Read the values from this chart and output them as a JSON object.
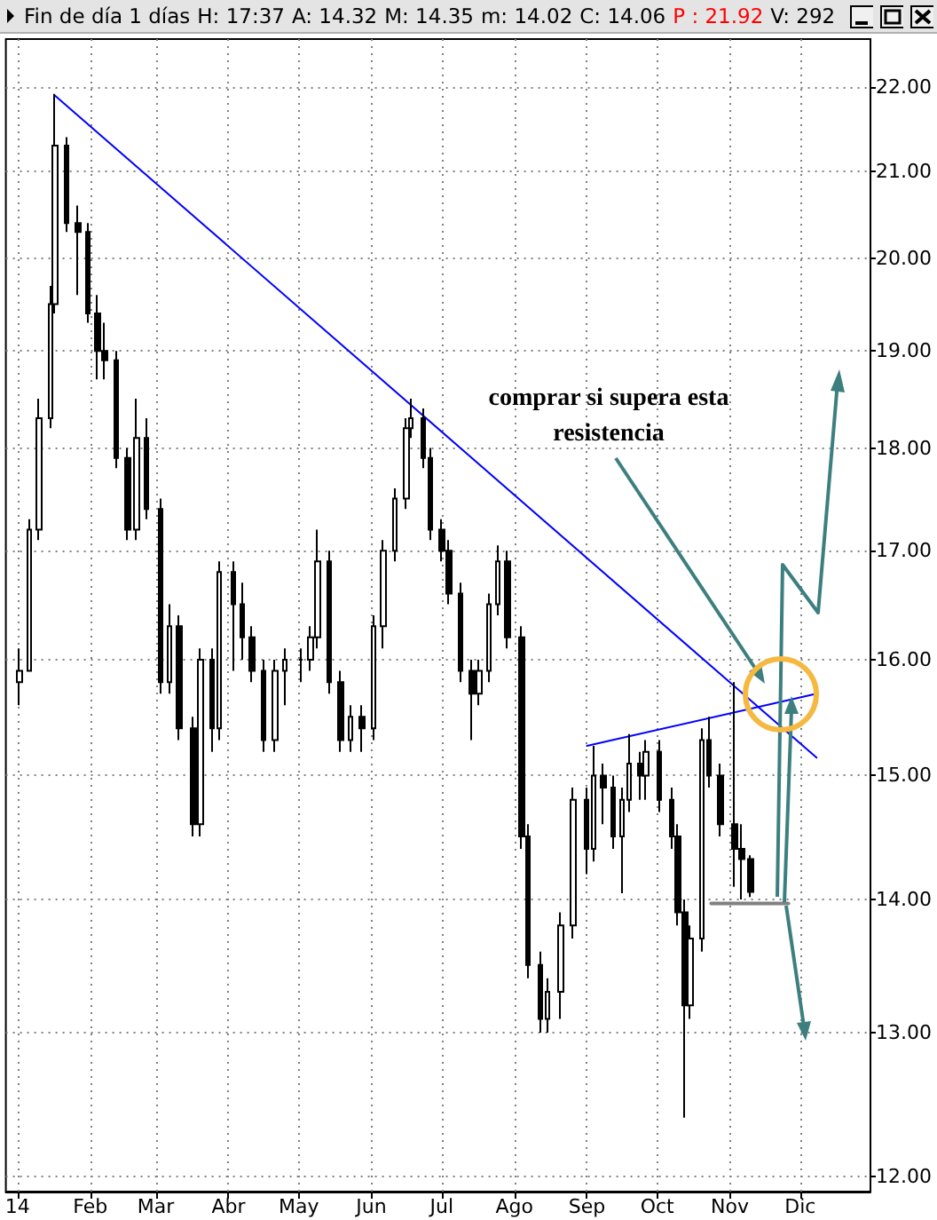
{
  "chart_data": {
    "type": "candlestick",
    "annotations": [
      "Fin de día 1 días",
      "H: 17:37",
      "A: 14.32",
      "M: 14.35",
      "m: 14.02",
      "C: 14.06",
      "P : 21.92",
      "V: 292",
      "comprar si supera esta resistencia"
    ],
    "x": [
      "2014-01-02",
      "2014-01-06",
      "2014-01-10",
      "2014-01-15",
      "2014-01-17",
      "2014-01-22",
      "2014-01-27",
      "2014-01-31",
      "2014-02-04",
      "2014-02-07",
      "2014-02-12",
      "2014-02-17",
      "2014-02-21",
      "2014-02-25",
      "2014-03-03",
      "2014-03-07",
      "2014-03-11",
      "2014-03-17",
      "2014-03-20",
      "2014-03-25",
      "2014-03-28",
      "2014-04-03",
      "2014-04-07",
      "2014-04-11",
      "2014-04-16",
      "2014-04-21",
      "2014-04-25",
      "2014-05-02",
      "2014-05-06",
      "2014-05-09",
      "2014-05-14",
      "2014-05-19",
      "2014-05-23",
      "2014-05-28",
      "2014-06-02",
      "2014-06-06",
      "2014-06-11",
      "2014-06-16",
      "2014-06-18",
      "2014-06-23",
      "2014-06-26",
      "2014-07-01",
      "2014-07-04",
      "2014-07-09",
      "2014-07-14",
      "2014-07-17",
      "2014-07-21",
      "2014-07-25",
      "2014-07-29",
      "2014-08-04",
      "2014-08-07",
      "2014-08-12",
      "2014-08-15",
      "2014-08-21",
      "2014-08-26",
      "2014-09-01",
      "2014-09-04",
      "2014-09-08",
      "2014-09-12",
      "2014-09-16",
      "2014-09-19",
      "2014-09-24",
      "2014-09-26",
      "2014-10-02",
      "2014-10-07",
      "2014-10-10",
      "2014-10-13",
      "2014-10-15",
      "2014-10-20",
      "2014-10-23",
      "2014-10-28",
      "2014-11-03",
      "2014-11-06",
      "2014-11-10"
    ],
    "ohlc": [
      [
        15.8,
        16.1,
        15.6,
        15.9
      ],
      [
        15.9,
        17.3,
        15.9,
        17.2
      ],
      [
        17.2,
        18.5,
        17.1,
        18.3
      ],
      [
        18.3,
        19.7,
        18.2,
        19.5
      ],
      [
        19.5,
        21.92,
        19.4,
        21.3
      ],
      [
        21.3,
        21.4,
        20.3,
        20.4
      ],
      [
        20.4,
        20.6,
        19.6,
        20.3
      ],
      [
        20.3,
        20.4,
        19.3,
        19.4
      ],
      [
        19.4,
        19.6,
        18.7,
        19.0
      ],
      [
        19.0,
        19.3,
        18.7,
        18.9
      ],
      [
        18.9,
        19.0,
        17.8,
        17.9
      ],
      [
        17.9,
        18.0,
        17.1,
        17.2
      ],
      [
        17.2,
        18.5,
        17.1,
        18.1
      ],
      [
        18.1,
        18.3,
        17.3,
        17.4
      ],
      [
        17.4,
        17.5,
        15.7,
        15.8
      ],
      [
        15.8,
        16.5,
        15.7,
        16.3
      ],
      [
        16.3,
        16.4,
        15.3,
        15.4
      ],
      [
        15.4,
        15.5,
        14.5,
        14.6
      ],
      [
        14.6,
        16.1,
        14.5,
        16.0
      ],
      [
        16.0,
        16.1,
        15.2,
        15.4
      ],
      [
        15.4,
        16.9,
        15.3,
        16.8
      ],
      [
        16.8,
        16.9,
        15.9,
        16.5
      ],
      [
        16.5,
        16.7,
        16.0,
        16.2
      ],
      [
        16.2,
        16.3,
        15.8,
        15.9
      ],
      [
        15.9,
        16.0,
        15.2,
        15.3
      ],
      [
        15.3,
        16.0,
        15.2,
        15.9
      ],
      [
        15.9,
        16.1,
        15.6,
        16.0
      ],
      [
        16.0,
        16.1,
        15.8,
        16.0
      ],
      [
        16.0,
        16.3,
        15.9,
        16.2
      ],
      [
        16.2,
        17.2,
        16.1,
        16.9
      ],
      [
        16.9,
        17.0,
        15.7,
        15.8
      ],
      [
        15.8,
        15.9,
        15.2,
        15.3
      ],
      [
        15.3,
        15.6,
        15.2,
        15.5
      ],
      [
        15.5,
        15.6,
        15.2,
        15.4
      ],
      [
        15.4,
        16.4,
        15.3,
        16.3
      ],
      [
        16.3,
        17.1,
        16.1,
        17.0
      ],
      [
        17.0,
        17.6,
        16.9,
        17.5
      ],
      [
        17.5,
        18.3,
        17.4,
        18.2
      ],
      [
        18.2,
        18.5,
        18.1,
        18.3
      ],
      [
        18.3,
        18.4,
        17.8,
        17.9
      ],
      [
        17.9,
        18.0,
        17.1,
        17.2
      ],
      [
        17.2,
        17.3,
        16.9,
        17.0
      ],
      [
        17.0,
        17.1,
        16.5,
        16.6
      ],
      [
        16.6,
        16.7,
        15.8,
        15.9
      ],
      [
        15.9,
        16.0,
        15.3,
        15.7
      ],
      [
        15.7,
        16.0,
        15.6,
        15.9
      ],
      [
        15.9,
        16.6,
        15.8,
        16.5
      ],
      [
        16.5,
        17.05,
        16.4,
        16.9
      ],
      [
        16.9,
        17.0,
        16.1,
        16.2
      ],
      [
        16.2,
        16.3,
        14.4,
        14.5
      ],
      [
        14.5,
        14.6,
        13.4,
        13.5
      ],
      [
        13.5,
        13.6,
        13.0,
        13.1
      ],
      [
        13.1,
        13.4,
        13.0,
        13.3
      ],
      [
        13.3,
        13.9,
        13.1,
        13.8
      ],
      [
        13.8,
        14.9,
        13.7,
        14.8
      ],
      [
        14.8,
        14.9,
        14.2,
        14.4
      ],
      [
        14.4,
        15.25,
        14.3,
        15.0
      ],
      [
        15.0,
        15.1,
        14.6,
        14.9
      ],
      [
        14.9,
        15.0,
        14.4,
        14.5
      ],
      [
        14.5,
        14.9,
        14.05,
        14.8
      ],
      [
        14.8,
        15.35,
        14.7,
        15.1
      ],
      [
        15.1,
        15.2,
        14.8,
        15.0
      ],
      [
        15.0,
        15.3,
        14.8,
        15.2
      ],
      [
        15.2,
        15.3,
        14.7,
        14.8
      ],
      [
        14.8,
        14.9,
        14.4,
        14.5
      ],
      [
        14.5,
        14.6,
        13.8,
        13.9
      ],
      [
        13.9,
        14.0,
        12.4,
        13.2
      ],
      [
        13.2,
        13.8,
        13.1,
        13.7
      ],
      [
        13.7,
        15.4,
        13.6,
        15.3
      ],
      [
        15.3,
        15.5,
        14.9,
        15.0
      ],
      [
        15.0,
        15.1,
        14.5,
        14.6
      ],
      [
        14.6,
        15.8,
        14.1,
        14.4
      ],
      [
        14.4,
        14.6,
        14.0,
        14.32
      ],
      [
        14.32,
        14.35,
        14.02,
        14.06
      ]
    ],
    "color": "#000000",
    "series": [
      {
        "type": "line",
        "color": "#0000ff",
        "x": [
          "2014-01-17",
          "2014-12-08"
        ],
        "values": [
          21.9,
          15.15
        ]
      },
      {
        "type": "line",
        "color": "#0000ff",
        "x": [
          "2014-09-01",
          "2014-12-08"
        ],
        "values": [
          15.25,
          15.7
        ]
      },
      {
        "type": "line",
        "color": "#808080",
        "x": [
          "2014-10-24",
          "2014-11-26"
        ],
        "values": [
          13.97,
          13.97
        ]
      }
    ],
    "xlim": [
      "2013-12-27",
      "2014-12-31"
    ],
    "xticks": [
      {
        "value": "2014-01-01",
        "label": "14"
      },
      {
        "value": "2014-02-01",
        "label": "Feb"
      },
      {
        "value": "2014-03-01",
        "label": "Mar"
      },
      {
        "value": "2014-04-01",
        "label": "Abr"
      },
      {
        "value": "2014-05-01",
        "label": "May"
      },
      {
        "value": "2014-06-01",
        "label": "Jun"
      },
      {
        "value": "2014-07-01",
        "label": "Jul"
      },
      {
        "value": "2014-08-01",
        "label": "Ago"
      },
      {
        "value": "2014-09-01",
        "label": "Sep"
      },
      {
        "value": "2014-10-01",
        "label": "Oct"
      },
      {
        "value": "2014-11-01",
        "label": "Nov"
      },
      {
        "value": "2014-12-01",
        "label": "Dic"
      }
    ],
    "ylim": [
      11.9,
      22.6
    ],
    "yticks": [
      {
        "value": 12,
        "label": "12.00"
      },
      {
        "value": 13,
        "label": "13.00"
      },
      {
        "value": 14,
        "label": "14.00"
      },
      {
        "value": 15,
        "label": "15.00"
      },
      {
        "value": 16,
        "label": "16.00"
      },
      {
        "value": 17,
        "label": "17.00"
      },
      {
        "value": 18,
        "label": "18.00"
      },
      {
        "value": 19,
        "label": "19.00"
      },
      {
        "value": 20,
        "label": "20.00"
      },
      {
        "value": 21,
        "label": "21.00"
      },
      {
        "value": 22,
        "label": "22.00"
      }
    ],
    "log": true,
    "grid": true
  }
}
